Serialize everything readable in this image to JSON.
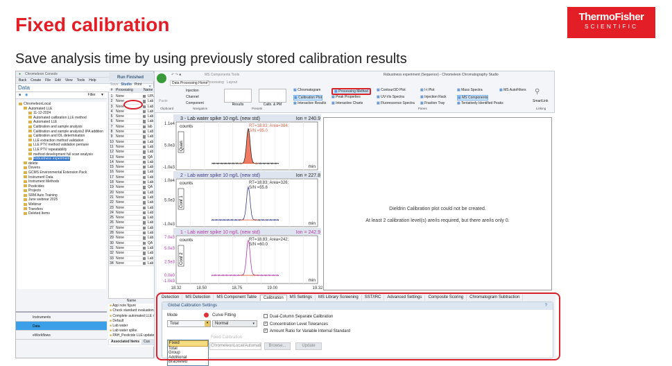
{
  "slide": {
    "title": "Fixed calibration",
    "subtitle": "Save analysis time by using previously stored calibration results",
    "logo": {
      "line1": "ThermoFisher",
      "line2": "SCIENTIFIC"
    },
    "accent": "#e41e26"
  },
  "console": {
    "window_title": "Chromeleon Console",
    "menu": [
      "Back",
      "Create",
      "File",
      "Edit",
      "View",
      "Tools",
      "Help"
    ],
    "data_header": "Data",
    "filter_label": "Filter",
    "tree": [
      {
        "label": "ChromeleonLocal",
        "level": 0
      },
      {
        "label": "Automated LLE",
        "level": 1
      },
      {
        "label": "11-12-2024",
        "level": 2
      },
      {
        "label": "Automated calibration LLE method",
        "level": 2
      },
      {
        "label": "Automated LLE",
        "level": 2
      },
      {
        "label": "Calibration and sample analysis",
        "level": 2
      },
      {
        "label": "Calibration and sample analysis2 IPA addition",
        "level": 2
      },
      {
        "label": "Calibration and IDL determination",
        "level": 2
      },
      {
        "label": "LLE extraction method validation",
        "level": 2
      },
      {
        "label": "LLE PTV method validation pentane",
        "level": 2
      },
      {
        "label": "LLE PTV repeatability",
        "level": 2
      },
      {
        "label": "method development full scan analysis",
        "level": 2
      },
      {
        "label": "Robustness experiment",
        "level": 2,
        "selected": true
      },
      {
        "label": "delete",
        "level": 1
      },
      {
        "label": "Dovens",
        "level": 1
      },
      {
        "label": "GCMS Environmental Extension Pack",
        "level": 1
      },
      {
        "label": "Instrument Data",
        "level": 1
      },
      {
        "label": "Instrument Methods",
        "level": 1
      },
      {
        "label": "Pesticides",
        "level": 1
      },
      {
        "label": "Projects",
        "level": 1
      },
      {
        "label": "SRM Auto Training",
        "level": 1
      },
      {
        "label": "June webinar 2025",
        "level": 1
      },
      {
        "label": "Webinar",
        "level": 1
      },
      {
        "label": "Transfers",
        "level": 1
      },
      {
        "label": "Deleted Items",
        "level": 1
      }
    ],
    "run_status": "Run Finished",
    "toolbar": {
      "save": "Save",
      "studio": "Studio",
      "print": "Print"
    },
    "table_headers": [
      "#",
      "Processing",
      "Name"
    ],
    "rows": [
      "UPL",
      "Lab",
      "Lab",
      "Lab",
      "Lab",
      "Lab",
      "lab",
      "Lab",
      "Lab",
      "Lab",
      "Lab",
      "Lab",
      "QA",
      "Lab",
      "Lab",
      "Lab",
      "Lab",
      "Lab",
      "QA",
      "Lab",
      "Lab",
      "Lab",
      "Lab",
      "Lab",
      "Lab",
      "Lab",
      "Lab",
      "Lab",
      "Lab",
      "QA",
      "Lab",
      "Lab",
      "Lab",
      "Lab"
    ],
    "row_processing": "None",
    "assoc_header": "Name",
    "assoc_items": [
      "App note figure",
      "Check standard evaluation",
      "Complete automated LLE m",
      "Default",
      "Lab water",
      "Lab water spike",
      "PAH_Pesticide LLE updated"
    ],
    "assoc_tabs": [
      "Associated Items",
      "Cus"
    ],
    "nav": [
      "Instruments",
      "Data",
      "eWorkflows"
    ]
  },
  "studio": {
    "context_tab": "MS Components Tools",
    "window_title": "Robustness experiment (Sequence) - Chromeleon Chromatography Studio",
    "ribbon_tabs": [
      "Data Processing Home",
      "Processing",
      "Layout"
    ],
    "clipboard": {
      "paste": "Paste",
      "group": "Clipboard"
    },
    "navigation": {
      "items": [
        "Injection",
        "Channel",
        "Component"
      ],
      "group": "Navigation"
    },
    "presets": {
      "items": [
        "Results",
        "Calib. & PM"
      ],
      "group": "Presets"
    },
    "panes": {
      "col1": [
        "Chromatogram",
        "Calibration Plot",
        "Interactive Results"
      ],
      "col2": [
        "Processing Method",
        "Peak Properties",
        "Interactive Charts"
      ],
      "col3": [
        "Contour/3D Plot",
        "UV-Vis Spectra",
        "Fluorescence Spectra"
      ],
      "col4": [
        "I-t Plot",
        "Injection Rack",
        "Fraction Tray"
      ],
      "col5": [
        "Mass Spectra",
        "MS Components",
        "Tentatively Identified Peaks"
      ],
      "col6": [
        "MS AutoFilters"
      ],
      "group": "Panes"
    },
    "linking": {
      "smartlink": "SmartLink",
      "group": "Linking"
    },
    "chromatograms": [
      {
        "title": "3 - Lab water spike 10 ng/L (new std)",
        "ion": "Ion = 240.9",
        "tag": "Quan",
        "color": "#2a2a2a",
        "fill": "#f07a62",
        "annotation": [
          "RT=18.83; Area=384;",
          "S/N =95.0"
        ],
        "yticks": [
          "1.1e4",
          "5.0e3",
          "-1.0e3"
        ],
        "ymin": -1000,
        "ymax": 11000,
        "peak_rt": 18.83,
        "peak_height": 9500
      },
      {
        "title": "2 - Lab water spike 10 ng/L (new std)",
        "ion": "Ion = 227.8",
        "tag": "Conf 1",
        "color": "#3a3a8a",
        "fill": null,
        "annotation": [
          "RT=18.83; Area=326;",
          "S/N =55.8"
        ],
        "yticks": [
          "1.0e4",
          "5.0e3",
          "-1.0e3"
        ],
        "ymin": -1000,
        "ymax": 10000,
        "peak_rt": 18.83,
        "peak_height": 8200
      },
      {
        "title": "1 - Lab water spike 10 ng/L (new std)",
        "ion": "Ion = 242.9",
        "tag": "Conf 2",
        "color": "#b03aa8",
        "fill": null,
        "annotation": [
          "RT=18.83; Area=242;",
          "S/N =60.0"
        ],
        "yticks": [
          "7.0e3",
          "5.0e3",
          "2.5e3",
          "0.0e0",
          "-1.0e3"
        ],
        "ymin": -1000,
        "ymax": 7000,
        "peak_rt": 18.83,
        "peak_height": 6400
      }
    ],
    "y_label": "counts",
    "x_unit": "min",
    "x_ticks": [
      "18.32",
      "18.50",
      "18.75",
      "19.00",
      "19.32"
    ],
    "x_range": [
      18.32,
      19.32
    ],
    "message": [
      "Dieldrin Calibration plot could not be created.",
      "At least 2 calibration level(s) are/is required, but there are/is only 0."
    ],
    "pm_tabs": [
      "Detection",
      "MS Detection",
      "MS Component Table",
      "Calibration",
      "MS Settings",
      "MS Library Screening",
      "SST/IRC",
      "Advanced Settings",
      "Composite Scoring",
      "Chromatogram Subtraction"
    ],
    "active_tab": "Calibration",
    "gcs": {
      "header": "Global Calibration Settings",
      "mode_label": "Mode",
      "mode_value": "Total",
      "mode_options": [
        "Fixed",
        "Total",
        "Group",
        "Additional",
        "Bracketed"
      ],
      "curve_label": "Curve Fitting",
      "curve_value": "Normal",
      "fixed_label": "Fixed Calibration",
      "fixed_path": "ChromeleonLocal/Automati",
      "browse": "Browse...",
      "update": "Update",
      "checks": [
        {
          "label": "Dual-Column Separate Calibration",
          "checked": false
        },
        {
          "label": "Concentration Level Tolerances",
          "checked": true
        },
        {
          "label": "Amount Ratio for Variable Internal Standard",
          "checked": true
        }
      ]
    }
  }
}
